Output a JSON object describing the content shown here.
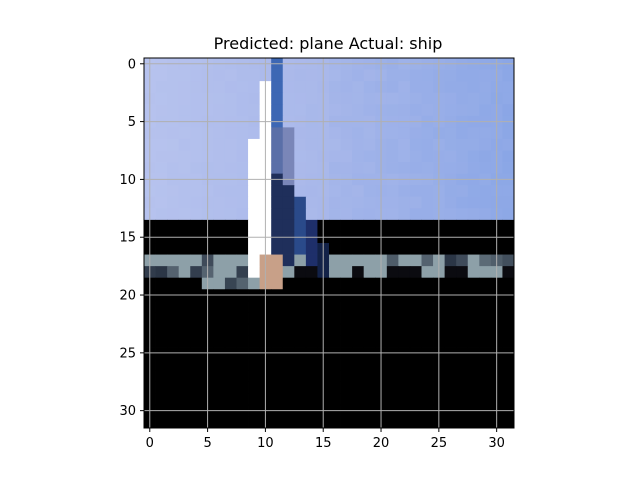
{
  "figure": {
    "title": "Predicted: plane Actual: ship"
  },
  "image": {
    "description_source": "32x32 pixelated CIFAR-like image of a ship mast against a light blue sky over a black sea",
    "grid": "on",
    "palette": {
      "sky_light": "#b7c3ee",
      "sky_mid": "#a9b8ea",
      "sky_deep": "#8aa6e6",
      "horizon": "#8da0a8",
      "sea": "#000000",
      "mast_white": "#ffffff",
      "mast_dark": "#1f2f5b",
      "mast_blue": "#3d67b4",
      "mast_tan": "#c8a088"
    }
  },
  "axes": {
    "x_ticks": [
      "0",
      "5",
      "10",
      "15",
      "20",
      "25",
      "30"
    ],
    "y_ticks": [
      "0",
      "5",
      "10",
      "15",
      "20",
      "25",
      "30"
    ],
    "x_range": [
      -0.5,
      31.5
    ],
    "y_range": [
      -0.5,
      31.5
    ]
  }
}
